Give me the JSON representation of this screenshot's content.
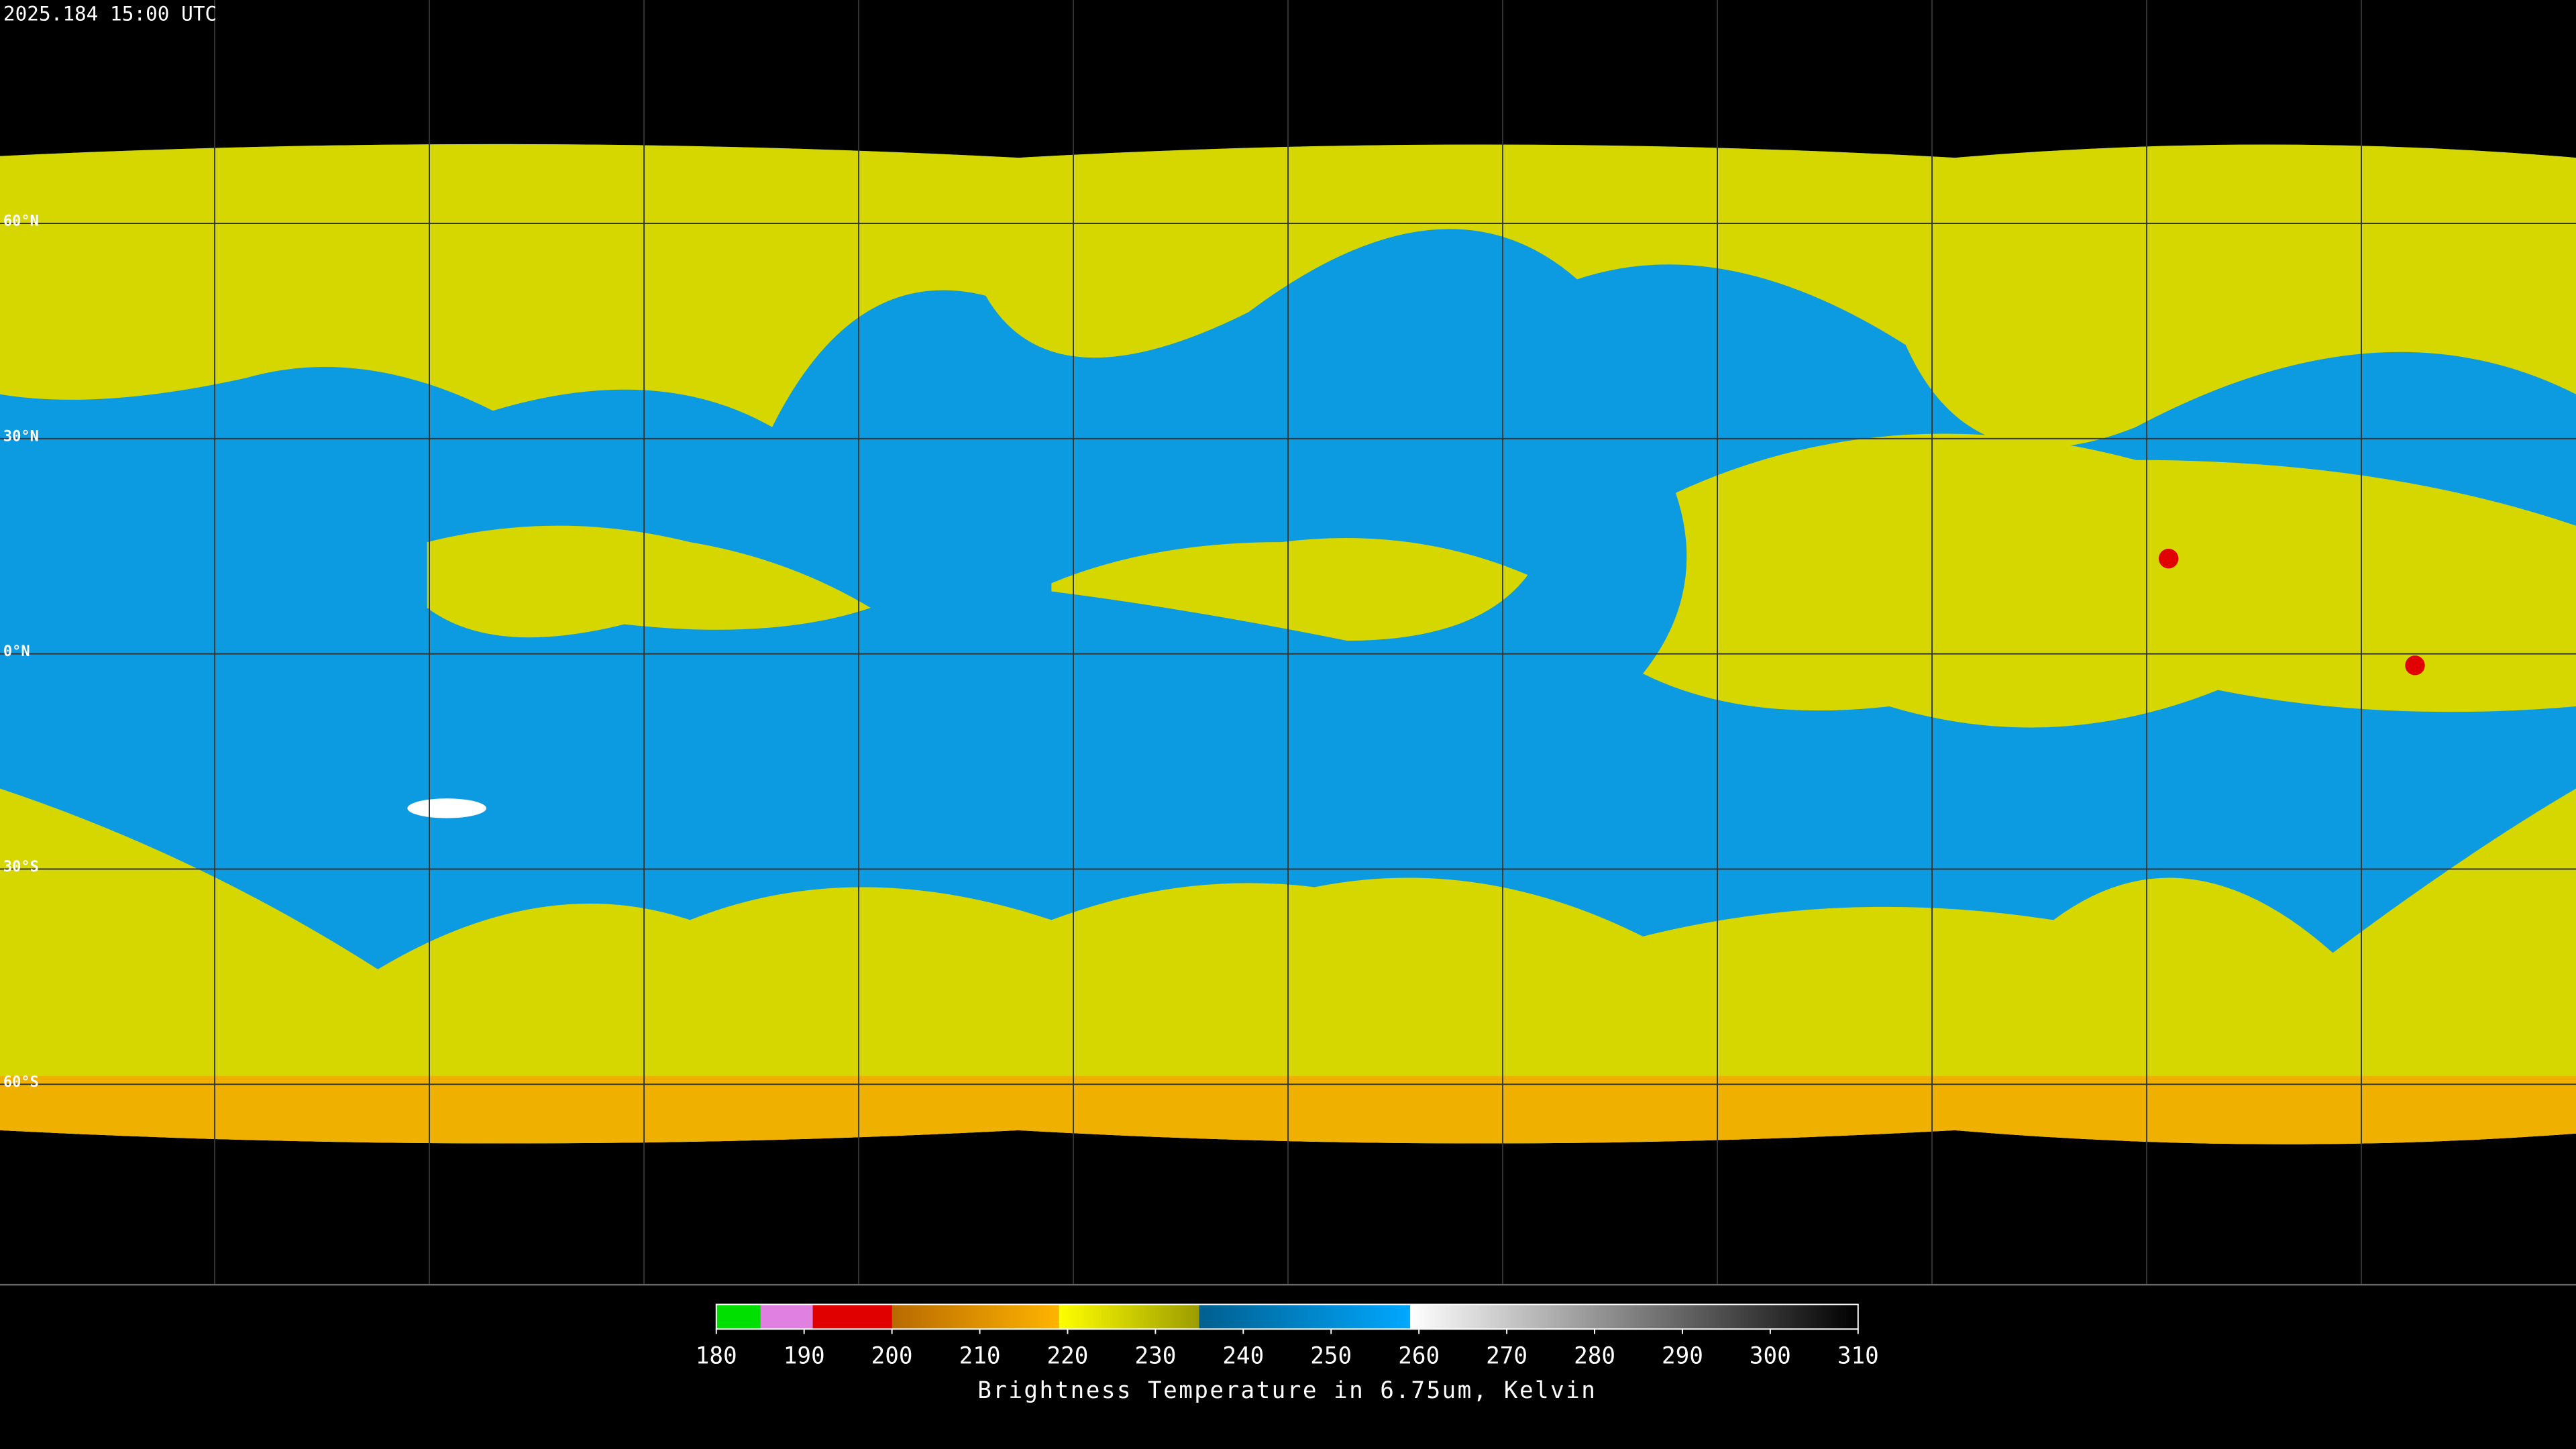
{
  "timestamp": "2025.184 15:00 UTC",
  "lat_labels": [
    "60°N",
    "30°N",
    "0°N",
    "30°S",
    "60°S"
  ],
  "colorbar": {
    "label": "Brightness Temperature in 6.75um, Kelvin",
    "range": [
      180,
      310
    ],
    "ticks": [
      180,
      190,
      200,
      210,
      220,
      230,
      240,
      250,
      260,
      270,
      280,
      290,
      300,
      310
    ],
    "segments": [
      {
        "from": 180,
        "to": 185,
        "colors": [
          "#00e000",
          "#00e000"
        ]
      },
      {
        "from": 185,
        "to": 191,
        "colors": [
          "#e080e0",
          "#e080e0"
        ]
      },
      {
        "from": 191,
        "to": 200,
        "colors": [
          "#e00000",
          "#e00000"
        ]
      },
      {
        "from": 200,
        "to": 219,
        "colors": [
          "#b86a00",
          "#ffb400"
        ]
      },
      {
        "from": 219,
        "to": 235,
        "colors": [
          "#ffff00",
          "#9c9c00"
        ]
      },
      {
        "from": 235,
        "to": 259,
        "colors": [
          "#005f8f",
          "#00a8ff"
        ]
      },
      {
        "from": 259,
        "to": 310,
        "colors": [
          "#ffffff",
          "#000000"
        ]
      }
    ]
  }
}
